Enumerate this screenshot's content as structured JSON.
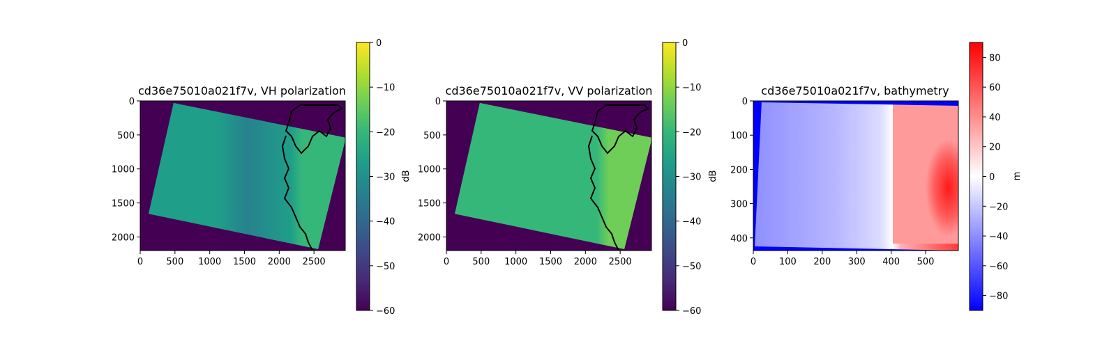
{
  "chart_data": [
    {
      "type": "heatmap",
      "title": "cd36e75010a021f7v, VH polarization",
      "xlim": [
        0,
        2950
      ],
      "ylim": [
        2200,
        0
      ],
      "x_ticks": [
        0,
        500,
        1000,
        1500,
        2000,
        2500
      ],
      "y_ticks": [
        0,
        500,
        1000,
        1500,
        2000
      ],
      "colorbar": {
        "label": "dB",
        "range": [
          -60,
          0
        ],
        "ticks": [
          0,
          -10,
          -20,
          -30,
          -40,
          -50,
          -60
        ],
        "colormap": "viridis"
      },
      "scene_footprint": [
        [
          480,
          30
        ],
        [
          2960,
          540
        ],
        [
          2560,
          2180
        ],
        [
          120,
          1660
        ]
      ],
      "scene_value_db": -30,
      "outside_value_db": -60
    },
    {
      "type": "heatmap",
      "title": "cd36e75010a021f7v, VV polarization",
      "xlim": [
        0,
        2950
      ],
      "ylim": [
        2200,
        0
      ],
      "x_ticks": [
        0,
        500,
        1000,
        1500,
        2000,
        2500
      ],
      "y_ticks": [
        0,
        500,
        1000,
        1500,
        2000
      ],
      "colorbar": {
        "label": "dB",
        "range": [
          -60,
          0
        ],
        "ticks": [
          0,
          -10,
          -20,
          -30,
          -40,
          -50,
          -60
        ],
        "colormap": "viridis"
      },
      "scene_footprint": [
        [
          480,
          30
        ],
        [
          2960,
          540
        ],
        [
          2560,
          2180
        ],
        [
          120,
          1660
        ]
      ],
      "scene_value_db": -22,
      "outside_value_db": -60
    },
    {
      "type": "heatmap",
      "title": "cd36e75010a021f7v, bathymetry",
      "xlim": [
        0,
        595
      ],
      "ylim": [
        437,
        0
      ],
      "x_ticks": [
        0,
        100,
        200,
        300,
        400,
        500
      ],
      "y_ticks": [
        0,
        100,
        200,
        300,
        400
      ],
      "colorbar": {
        "label": "m",
        "range": [
          -90,
          90
        ],
        "ticks": [
          80,
          60,
          40,
          20,
          0,
          -20,
          -40,
          -60,
          -80
        ],
        "colormap": "bwr"
      }
    }
  ],
  "colors": {
    "viridis": [
      "#440154",
      "#482878",
      "#3e4989",
      "#31688e",
      "#26828e",
      "#1f9e89",
      "#35b779",
      "#6ece58",
      "#b5de2b",
      "#fde725"
    ],
    "bwr": [
      "#0000ff",
      "#ffffff",
      "#ff0000"
    ],
    "coastline": "#000000"
  }
}
